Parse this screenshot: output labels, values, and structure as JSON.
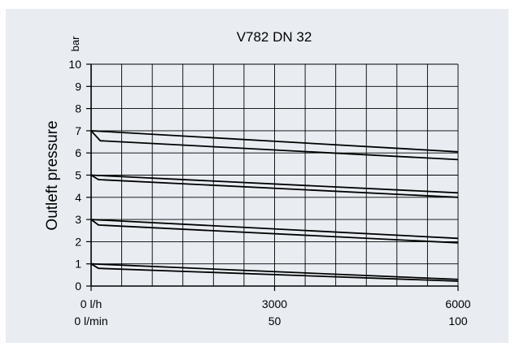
{
  "colors": {
    "background": "#e9edf2",
    "grid": "#000000",
    "curve": "#000000"
  },
  "chart_data": {
    "type": "line",
    "title": "V782 DN 32",
    "ylabel": "Outleft pressure",
    "yunit": "bar",
    "ylim": [
      0,
      10
    ],
    "yticks": [
      "0",
      "1",
      "2",
      "3",
      "4",
      "5",
      "6",
      "7",
      "8",
      "9",
      "10"
    ],
    "xlim": [
      0,
      6000
    ],
    "xaxis_primary": {
      "unit": "l/h",
      "ticks": [
        {
          "value": 0,
          "label": "0 l/h"
        },
        {
          "value": 3000,
          "label": "3000"
        },
        {
          "value": 6000,
          "label": "6000"
        }
      ]
    },
    "xaxis_secondary": {
      "unit": "l/min",
      "ticks": [
        {
          "value": 0,
          "label": "0 l/min"
        },
        {
          "value": 3000,
          "label": "50"
        },
        {
          "value": 6000,
          "label": "100"
        }
      ]
    },
    "grid": true,
    "series": [
      {
        "x": [
          0,
          6000
        ],
        "y": [
          7.0,
          6.05
        ]
      },
      {
        "x": [
          0,
          150,
          6000
        ],
        "y": [
          7.0,
          6.55,
          5.7
        ]
      },
      {
        "x": [
          0,
          6000
        ],
        "y": [
          5.0,
          4.2
        ]
      },
      {
        "x": [
          0,
          120,
          6000
        ],
        "y": [
          5.0,
          4.8,
          4.0
        ]
      },
      {
        "x": [
          0,
          6000
        ],
        "y": [
          3.0,
          2.15
        ]
      },
      {
        "x": [
          0,
          120,
          6000
        ],
        "y": [
          3.0,
          2.75,
          1.95
        ]
      },
      {
        "x": [
          0,
          6000
        ],
        "y": [
          1.0,
          0.3
        ]
      },
      {
        "x": [
          0,
          120,
          6000
        ],
        "y": [
          1.0,
          0.8,
          0.22
        ]
      }
    ]
  }
}
